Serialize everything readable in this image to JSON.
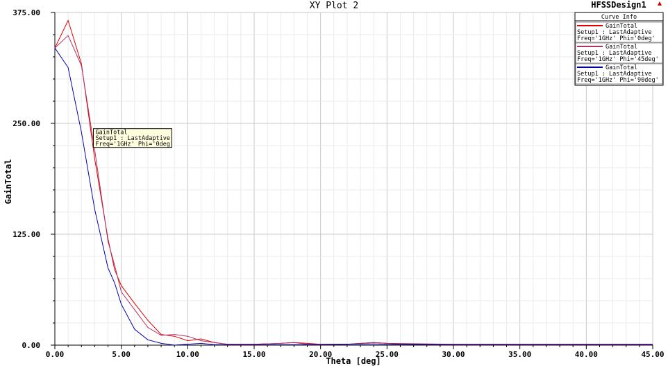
{
  "design_name": "HFSSDesign1",
  "curve_info_title": "Curve Info",
  "chart_data": {
    "type": "line",
    "title": "XY Plot 2",
    "xlabel": "Theta [deg]",
    "ylabel": "GainTotal",
    "xlim": [
      0,
      45
    ],
    "ylim": [
      0,
      375
    ],
    "x_ticks": [
      "0.00",
      "5.00",
      "10.00",
      "15.00",
      "20.00",
      "25.00",
      "30.00",
      "35.00",
      "40.00",
      "45.00"
    ],
    "y_ticks": [
      "0.00",
      "125.00",
      "250.00",
      "375.00"
    ],
    "grid": true,
    "legend": "top-right",
    "series": [
      {
        "legend_lines": [
          "GainTotal",
          "Setup1 : LastAdaptive",
          "Freq='1GHz' Phi='0deg'"
        ],
        "color": "#dd0000",
        "points": [
          [
            0,
            335
          ],
          [
            1,
            366
          ],
          [
            2,
            317
          ],
          [
            3,
            210
          ],
          [
            4,
            120
          ],
          [
            4.5,
            85
          ],
          [
            5,
            67
          ],
          [
            6,
            47
          ],
          [
            7,
            28
          ],
          [
            8,
            12
          ],
          [
            9,
            10
          ],
          [
            10,
            5
          ],
          [
            11,
            7
          ],
          [
            12,
            3
          ],
          [
            13,
            1
          ],
          [
            15,
            1
          ],
          [
            17,
            2
          ],
          [
            18,
            3
          ],
          [
            19,
            2
          ],
          [
            20,
            1
          ],
          [
            22,
            1
          ],
          [
            24,
            3
          ],
          [
            25,
            2
          ],
          [
            26,
            1
          ],
          [
            30,
            1
          ],
          [
            35,
            1
          ],
          [
            40,
            1
          ],
          [
            45,
            1
          ]
        ]
      },
      {
        "legend_lines": [
          "GainTotal",
          "Setup1 : LastAdaptive",
          "Freq='1GHz' Phi='45deg'"
        ],
        "color": "#b03060",
        "points": [
          [
            0,
            335
          ],
          [
            1,
            349
          ],
          [
            2,
            315
          ],
          [
            3,
            220
          ],
          [
            4,
            117
          ],
          [
            4.5,
            90
          ],
          [
            5,
            60
          ],
          [
            6,
            40
          ],
          [
            7,
            20
          ],
          [
            8,
            11
          ],
          [
            9,
            12
          ],
          [
            10,
            10
          ],
          [
            11,
            5
          ],
          [
            12,
            3
          ],
          [
            13,
            1
          ],
          [
            15,
            1
          ],
          [
            17,
            2
          ],
          [
            18,
            3
          ],
          [
            19,
            1
          ],
          [
            22,
            1
          ],
          [
            24,
            3
          ],
          [
            25,
            2
          ],
          [
            30,
            1
          ],
          [
            35,
            1
          ],
          [
            40,
            1
          ],
          [
            45,
            1
          ]
        ]
      },
      {
        "legend_lines": [
          "GainTotal",
          "Setup1 : LastAdaptive",
          "Freq='1GHz' Phi='90deg'"
        ],
        "color": "#0000aa",
        "points": [
          [
            0,
            335
          ],
          [
            1,
            313
          ],
          [
            2,
            240
          ],
          [
            3,
            153
          ],
          [
            4,
            87
          ],
          [
            4.5,
            70
          ],
          [
            5,
            46
          ],
          [
            6,
            18
          ],
          [
            7,
            6
          ],
          [
            8,
            2
          ],
          [
            9,
            0
          ],
          [
            10,
            1
          ],
          [
            11,
            2
          ],
          [
            12,
            0.5
          ],
          [
            15,
            0.5
          ],
          [
            20,
            0.5
          ],
          [
            24,
            1.5
          ],
          [
            25,
            1
          ],
          [
            30,
            0.5
          ],
          [
            35,
            0.5
          ],
          [
            40,
            0.5
          ],
          [
            45,
            0.5
          ]
        ]
      }
    ],
    "annotation": {
      "lines": [
        "GainTotal",
        "Setup1 : LastAdaptive",
        "Freq='1GHz' Phi='0deg'"
      ],
      "x": 2.9,
      "y": 244
    }
  }
}
